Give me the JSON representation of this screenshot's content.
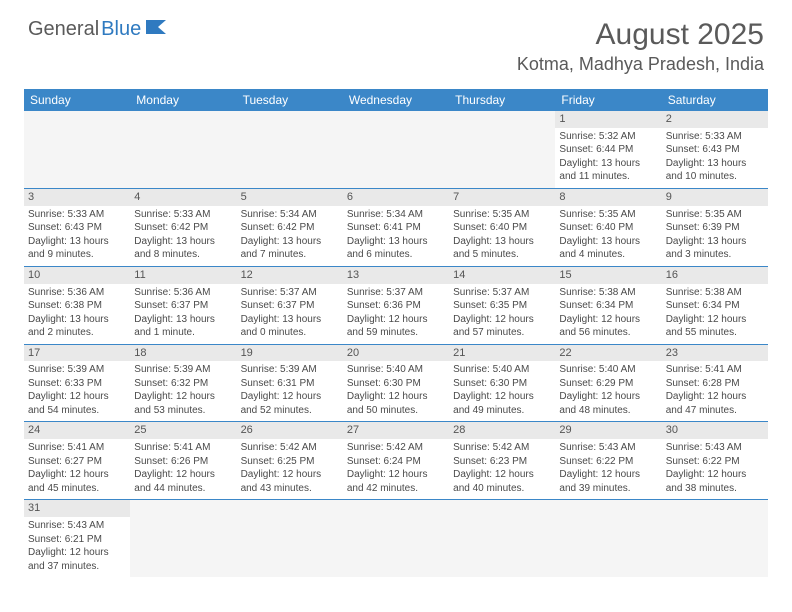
{
  "logo": {
    "part1": "General",
    "part2": "Blue"
  },
  "title": "August 2025",
  "location": "Kotma, Madhya Pradesh, India",
  "colors": {
    "header_bg": "#3b87c8",
    "header_text": "#ffffff",
    "daynum_bg": "#e9e9e9",
    "row_border": "#3b87c8",
    "body_text": "#4a4a4a",
    "title_text": "#5a5a5a",
    "logo_gray": "#5a5a5a",
    "logo_blue": "#2f7ac0",
    "background": "#ffffff"
  },
  "typography": {
    "title_fontsize": 30,
    "location_fontsize": 18,
    "dayheader_fontsize": 12,
    "cell_fontsize": 10,
    "daynum_fontsize": 11
  },
  "day_names": [
    "Sunday",
    "Monday",
    "Tuesday",
    "Wednesday",
    "Thursday",
    "Friday",
    "Saturday"
  ],
  "weeks": [
    [
      null,
      null,
      null,
      null,
      null,
      {
        "n": "1",
        "sr": "Sunrise: 5:32 AM",
        "ss": "Sunset: 6:44 PM",
        "d1": "Daylight: 13 hours",
        "d2": "and 11 minutes."
      },
      {
        "n": "2",
        "sr": "Sunrise: 5:33 AM",
        "ss": "Sunset: 6:43 PM",
        "d1": "Daylight: 13 hours",
        "d2": "and 10 minutes."
      }
    ],
    [
      {
        "n": "3",
        "sr": "Sunrise: 5:33 AM",
        "ss": "Sunset: 6:43 PM",
        "d1": "Daylight: 13 hours",
        "d2": "and 9 minutes."
      },
      {
        "n": "4",
        "sr": "Sunrise: 5:33 AM",
        "ss": "Sunset: 6:42 PM",
        "d1": "Daylight: 13 hours",
        "d2": "and 8 minutes."
      },
      {
        "n": "5",
        "sr": "Sunrise: 5:34 AM",
        "ss": "Sunset: 6:42 PM",
        "d1": "Daylight: 13 hours",
        "d2": "and 7 minutes."
      },
      {
        "n": "6",
        "sr": "Sunrise: 5:34 AM",
        "ss": "Sunset: 6:41 PM",
        "d1": "Daylight: 13 hours",
        "d2": "and 6 minutes."
      },
      {
        "n": "7",
        "sr": "Sunrise: 5:35 AM",
        "ss": "Sunset: 6:40 PM",
        "d1": "Daylight: 13 hours",
        "d2": "and 5 minutes."
      },
      {
        "n": "8",
        "sr": "Sunrise: 5:35 AM",
        "ss": "Sunset: 6:40 PM",
        "d1": "Daylight: 13 hours",
        "d2": "and 4 minutes."
      },
      {
        "n": "9",
        "sr": "Sunrise: 5:35 AM",
        "ss": "Sunset: 6:39 PM",
        "d1": "Daylight: 13 hours",
        "d2": "and 3 minutes."
      }
    ],
    [
      {
        "n": "10",
        "sr": "Sunrise: 5:36 AM",
        "ss": "Sunset: 6:38 PM",
        "d1": "Daylight: 13 hours",
        "d2": "and 2 minutes."
      },
      {
        "n": "11",
        "sr": "Sunrise: 5:36 AM",
        "ss": "Sunset: 6:37 PM",
        "d1": "Daylight: 13 hours",
        "d2": "and 1 minute."
      },
      {
        "n": "12",
        "sr": "Sunrise: 5:37 AM",
        "ss": "Sunset: 6:37 PM",
        "d1": "Daylight: 13 hours",
        "d2": "and 0 minutes."
      },
      {
        "n": "13",
        "sr": "Sunrise: 5:37 AM",
        "ss": "Sunset: 6:36 PM",
        "d1": "Daylight: 12 hours",
        "d2": "and 59 minutes."
      },
      {
        "n": "14",
        "sr": "Sunrise: 5:37 AM",
        "ss": "Sunset: 6:35 PM",
        "d1": "Daylight: 12 hours",
        "d2": "and 57 minutes."
      },
      {
        "n": "15",
        "sr": "Sunrise: 5:38 AM",
        "ss": "Sunset: 6:34 PM",
        "d1": "Daylight: 12 hours",
        "d2": "and 56 minutes."
      },
      {
        "n": "16",
        "sr": "Sunrise: 5:38 AM",
        "ss": "Sunset: 6:34 PM",
        "d1": "Daylight: 12 hours",
        "d2": "and 55 minutes."
      }
    ],
    [
      {
        "n": "17",
        "sr": "Sunrise: 5:39 AM",
        "ss": "Sunset: 6:33 PM",
        "d1": "Daylight: 12 hours",
        "d2": "and 54 minutes."
      },
      {
        "n": "18",
        "sr": "Sunrise: 5:39 AM",
        "ss": "Sunset: 6:32 PM",
        "d1": "Daylight: 12 hours",
        "d2": "and 53 minutes."
      },
      {
        "n": "19",
        "sr": "Sunrise: 5:39 AM",
        "ss": "Sunset: 6:31 PM",
        "d1": "Daylight: 12 hours",
        "d2": "and 52 minutes."
      },
      {
        "n": "20",
        "sr": "Sunrise: 5:40 AM",
        "ss": "Sunset: 6:30 PM",
        "d1": "Daylight: 12 hours",
        "d2": "and 50 minutes."
      },
      {
        "n": "21",
        "sr": "Sunrise: 5:40 AM",
        "ss": "Sunset: 6:30 PM",
        "d1": "Daylight: 12 hours",
        "d2": "and 49 minutes."
      },
      {
        "n": "22",
        "sr": "Sunrise: 5:40 AM",
        "ss": "Sunset: 6:29 PM",
        "d1": "Daylight: 12 hours",
        "d2": "and 48 minutes."
      },
      {
        "n": "23",
        "sr": "Sunrise: 5:41 AM",
        "ss": "Sunset: 6:28 PM",
        "d1": "Daylight: 12 hours",
        "d2": "and 47 minutes."
      }
    ],
    [
      {
        "n": "24",
        "sr": "Sunrise: 5:41 AM",
        "ss": "Sunset: 6:27 PM",
        "d1": "Daylight: 12 hours",
        "d2": "and 45 minutes."
      },
      {
        "n": "25",
        "sr": "Sunrise: 5:41 AM",
        "ss": "Sunset: 6:26 PM",
        "d1": "Daylight: 12 hours",
        "d2": "and 44 minutes."
      },
      {
        "n": "26",
        "sr": "Sunrise: 5:42 AM",
        "ss": "Sunset: 6:25 PM",
        "d1": "Daylight: 12 hours",
        "d2": "and 43 minutes."
      },
      {
        "n": "27",
        "sr": "Sunrise: 5:42 AM",
        "ss": "Sunset: 6:24 PM",
        "d1": "Daylight: 12 hours",
        "d2": "and 42 minutes."
      },
      {
        "n": "28",
        "sr": "Sunrise: 5:42 AM",
        "ss": "Sunset: 6:23 PM",
        "d1": "Daylight: 12 hours",
        "d2": "and 40 minutes."
      },
      {
        "n": "29",
        "sr": "Sunrise: 5:43 AM",
        "ss": "Sunset: 6:22 PM",
        "d1": "Daylight: 12 hours",
        "d2": "and 39 minutes."
      },
      {
        "n": "30",
        "sr": "Sunrise: 5:43 AM",
        "ss": "Sunset: 6:22 PM",
        "d1": "Daylight: 12 hours",
        "d2": "and 38 minutes."
      }
    ],
    [
      {
        "n": "31",
        "sr": "Sunrise: 5:43 AM",
        "ss": "Sunset: 6:21 PM",
        "d1": "Daylight: 12 hours",
        "d2": "and 37 minutes."
      },
      null,
      null,
      null,
      null,
      null,
      null
    ]
  ]
}
